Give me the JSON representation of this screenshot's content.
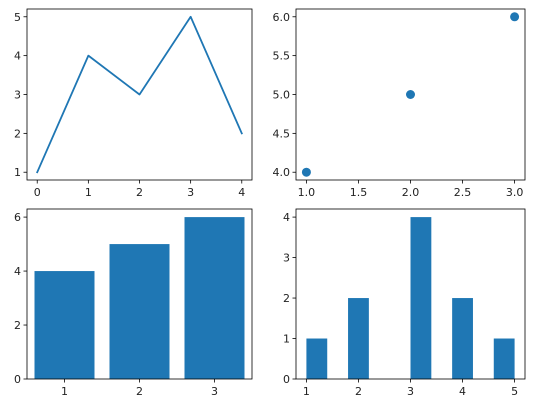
{
  "chart_data": [
    {
      "type": "line",
      "x": [
        0,
        1,
        2,
        3,
        4
      ],
      "y": [
        1,
        4,
        3,
        5,
        2
      ],
      "xlim": [
        -0.2,
        4.2
      ],
      "ylim": [
        0.8,
        5.2
      ],
      "xticks": [
        0,
        1,
        2,
        3,
        4
      ],
      "xtick_labels": [
        "0",
        "1",
        "2",
        "3",
        "4"
      ],
      "yticks": [
        1,
        2,
        3,
        4,
        5
      ],
      "ytick_labels": [
        "1",
        "2",
        "3",
        "4",
        "5"
      ],
      "grid": false,
      "color": "#1f77b4"
    },
    {
      "type": "scatter",
      "x": [
        1,
        2,
        3
      ],
      "y": [
        4,
        5,
        6
      ],
      "xlim": [
        0.9,
        3.1
      ],
      "ylim": [
        3.9,
        6.1
      ],
      "xticks": [
        1.0,
        1.5,
        2.0,
        2.5,
        3.0
      ],
      "xtick_labels": [
        "1.0",
        "1.5",
        "2.0",
        "2.5",
        "3.0"
      ],
      "yticks": [
        4.0,
        4.5,
        5.0,
        5.5,
        6.0
      ],
      "ytick_labels": [
        "4.0",
        "4.5",
        "5.0",
        "5.5",
        "6.0"
      ],
      "grid": false,
      "color": "#1f77b4"
    },
    {
      "type": "bar",
      "x": [
        1,
        2,
        3
      ],
      "values": [
        4,
        5,
        6
      ],
      "bar_width": 0.8,
      "xlim": [
        0.5,
        3.5
      ],
      "ylim": [
        0,
        6.3
      ],
      "xticks": [
        1,
        2,
        3
      ],
      "xtick_labels": [
        "1",
        "2",
        "3"
      ],
      "yticks": [
        0,
        2,
        4,
        6
      ],
      "ytick_labels": [
        "0",
        "2",
        "4",
        "6"
      ],
      "grid": false,
      "color": "#1f77b4"
    },
    {
      "type": "bar",
      "subtype": "histogram",
      "bin_edges": [
        1.0,
        1.4,
        1.8,
        2.2,
        2.6,
        3.0,
        3.4,
        3.8,
        4.2,
        4.6,
        5.0
      ],
      "counts": [
        1,
        0,
        2,
        0,
        0,
        4,
        0,
        2,
        0,
        1
      ],
      "xlim": [
        0.8,
        5.2
      ],
      "ylim": [
        0,
        4.2
      ],
      "xticks": [
        1,
        2,
        3,
        4,
        5
      ],
      "xtick_labels": [
        "1",
        "2",
        "3",
        "4",
        "5"
      ],
      "yticks": [
        0,
        1,
        2,
        3,
        4
      ],
      "ytick_labels": [
        "0",
        "1",
        "2",
        "3",
        "4"
      ],
      "grid": false,
      "color": "#1f77b4"
    }
  ]
}
